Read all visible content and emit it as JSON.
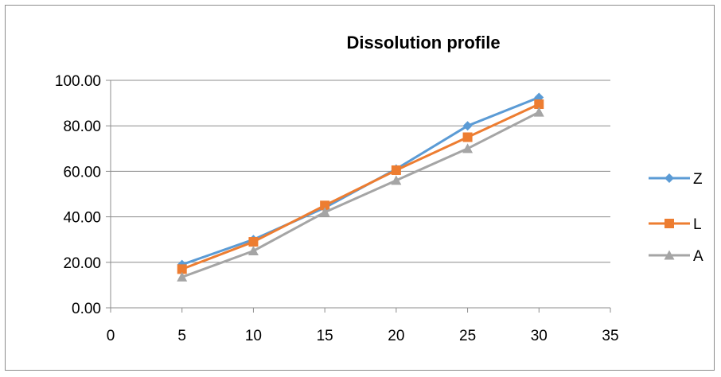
{
  "chart_data": {
    "type": "line",
    "title": "Dissolution profile",
    "xlabel": "",
    "ylabel": "",
    "x": [
      5,
      10,
      15,
      20,
      25,
      30
    ],
    "xlim": [
      0,
      35
    ],
    "xticks": [
      "0",
      "5",
      "10",
      "15",
      "20",
      "25",
      "30",
      "35"
    ],
    "ylim": [
      0,
      100
    ],
    "yticks": [
      "0.00",
      "20.00",
      "40.00",
      "60.00",
      "80.00",
      "100.00"
    ],
    "grid": "horizontal",
    "legend": "right",
    "series": [
      {
        "name": "Z",
        "values": [
          19,
          30,
          44,
          61,
          80,
          92.5
        ],
        "color": "#5b9bd5",
        "marker": "diamond"
      },
      {
        "name": "L",
        "values": [
          17,
          29,
          45,
          60.5,
          75,
          89.5
        ],
        "color": "#ed7d31",
        "marker": "square"
      },
      {
        "name": "A",
        "values": [
          13.5,
          25,
          42,
          56,
          70,
          86
        ],
        "color": "#a5a5a5",
        "marker": "triangle"
      }
    ]
  }
}
